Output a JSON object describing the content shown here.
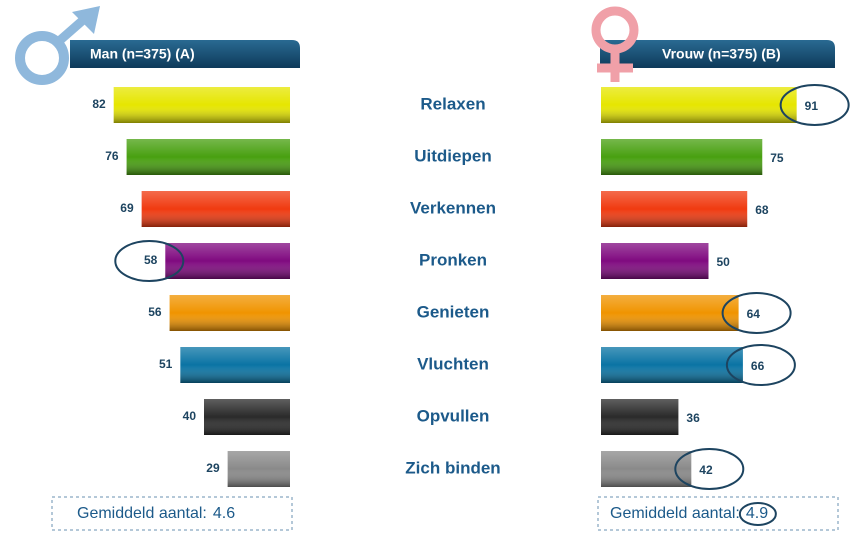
{
  "chart_data": {
    "type": "butterfly_bar",
    "categories": [
      "Relaxen",
      "Uitdiepen",
      "Verkennen",
      "Pronken",
      "Genieten",
      "Vluchten",
      "Opvullen",
      "Zich binden"
    ],
    "colors": [
      "#e6e600",
      "#48a010",
      "#f03a10",
      "#800a80",
      "#f09400",
      "#0a74a4",
      "#2a2a2a",
      "#8a8a8a"
    ],
    "average_label": "Gemiddeld aantal:",
    "series": [
      {
        "name": "Man (n=375) (A)",
        "values": [
          82,
          76,
          69,
          58,
          56,
          51,
          40,
          29
        ],
        "highlight": [
          3
        ],
        "average": 4.6,
        "average_highlight": false
      },
      {
        "name": "Vrouw (n=375) (B)",
        "values": [
          91,
          75,
          68,
          50,
          64,
          66,
          36,
          42
        ],
        "highlight": [
          0,
          4,
          5,
          7
        ],
        "average": 4.9,
        "average_highlight": true
      }
    ]
  }
}
